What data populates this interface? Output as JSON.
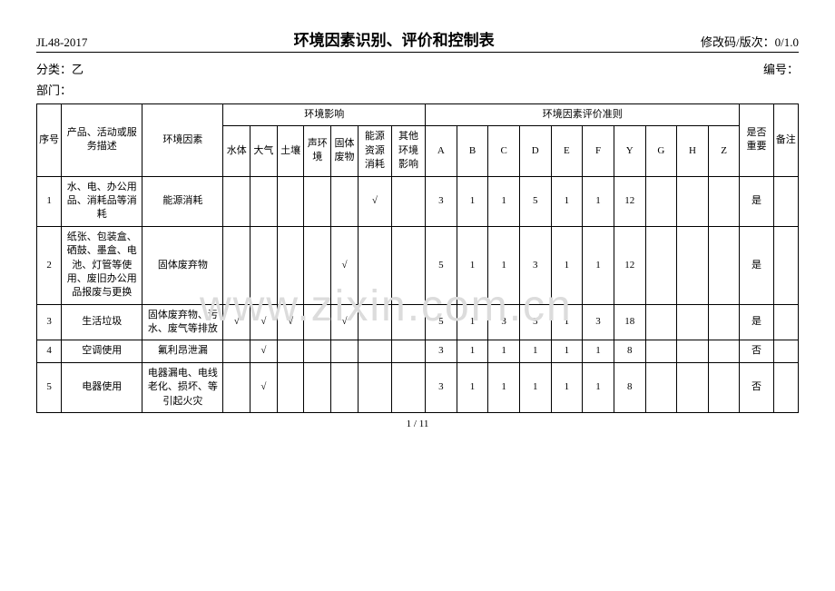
{
  "header": {
    "doc_code": "JL48-2017",
    "title": "环境因素识别、评价和控制表",
    "revision": "修改码/版次：0/1.0"
  },
  "meta": {
    "category_label": "分类：",
    "category_value": "乙",
    "number_label": "编号：",
    "number_value": "",
    "dept_label": "部门：",
    "dept_value": ""
  },
  "columns": {
    "seq": "序号",
    "desc": "产品、活动或服务描述",
    "factor": "环境因素",
    "impact_group": "环境影响",
    "impacts": [
      "水体",
      "大气",
      "土壤",
      "声环境",
      "固体废物",
      "能源资源消耗",
      "其他环境影响"
    ],
    "criteria_group": "环境因素评价准则",
    "criteria": [
      "A",
      "B",
      "C",
      "D",
      "E",
      "F",
      "Y",
      "G",
      "H",
      "Z"
    ],
    "important": "是否重要",
    "note": "备注"
  },
  "rows": [
    {
      "seq": "1",
      "desc": "水、电、办公用品、消耗品等消耗",
      "factor": "能源消耗",
      "impacts": [
        "",
        "",
        "",
        "",
        "",
        "√",
        ""
      ],
      "scores": [
        "3",
        "1",
        "1",
        "5",
        "1",
        "1",
        "12",
        "",
        "",
        ""
      ],
      "important": "是",
      "note": ""
    },
    {
      "seq": "2",
      "desc": "纸张、包装盒、硒鼓、墨盒、电池、灯管等使用、废旧办公用品报废与更换",
      "factor": "固体废弃物",
      "impacts": [
        "",
        "",
        "",
        "",
        "√",
        "",
        ""
      ],
      "scores": [
        "5",
        "1",
        "1",
        "3",
        "1",
        "1",
        "12",
        "",
        "",
        ""
      ],
      "important": "是",
      "note": ""
    },
    {
      "seq": "3",
      "desc": "生活垃圾",
      "factor": "固体废弃物、污水、废气等排放",
      "impacts": [
        "√",
        "√",
        "√",
        "",
        "√",
        "",
        ""
      ],
      "scores": [
        "5",
        "1",
        "3",
        "5",
        "1",
        "3",
        "18",
        "",
        "",
        ""
      ],
      "important": "是",
      "note": ""
    },
    {
      "seq": "4",
      "desc": "空调使用",
      "factor": "氟利昂泄漏",
      "impacts": [
        "",
        "√",
        "",
        "",
        "",
        "",
        ""
      ],
      "scores": [
        "3",
        "1",
        "1",
        "1",
        "1",
        "1",
        "8",
        "",
        "",
        ""
      ],
      "important": "否",
      "note": ""
    },
    {
      "seq": "5",
      "desc": "电器使用",
      "factor": "电器漏电、电线老化、损坏、等引起火灾",
      "impacts": [
        "",
        "√",
        "",
        "",
        "",
        "",
        ""
      ],
      "scores": [
        "3",
        "1",
        "1",
        "1",
        "1",
        "1",
        "8",
        "",
        "",
        ""
      ],
      "important": "否",
      "note": ""
    }
  ],
  "watermark": "www.zixin.com.cn",
  "page_num": "1 / 11"
}
